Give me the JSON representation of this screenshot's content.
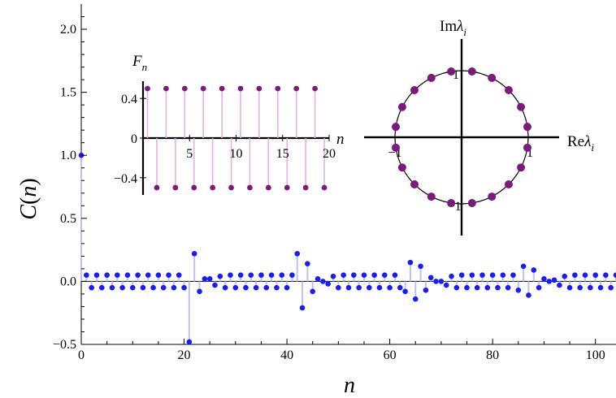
{
  "chart_data": [
    {
      "type": "scatter",
      "subtype": "stem",
      "xlabel": "n",
      "ylabel": "C(n)",
      "xlim": [
        0,
        104
      ],
      "ylim": [
        -0.5,
        2.2
      ],
      "x_ticks": [
        "0",
        "20",
        "40",
        "60",
        "80",
        "100"
      ],
      "y_ticks": [
        "−0.5",
        "0.0",
        "0.5",
        "1.0",
        "1.5",
        "2.0"
      ],
      "colors": {
        "points": "#1a1aff",
        "stems": "#b8c4f0"
      },
      "series": [
        {
          "x": [
            0,
            1,
            2,
            3,
            4,
            5,
            6,
            7,
            8,
            9,
            10,
            11,
            12,
            13,
            14,
            15,
            16,
            17,
            18,
            19,
            20,
            21,
            22,
            23,
            24,
            25,
            26,
            27,
            28,
            29,
            30,
            31,
            32,
            33,
            34,
            35,
            36,
            37,
            38,
            39,
            40,
            41,
            42,
            43,
            44,
            45,
            46,
            47,
            48,
            49,
            50,
            51,
            52,
            53,
            54,
            55,
            56,
            57,
            58,
            59,
            60,
            61,
            62,
            63,
            64,
            65,
            66,
            67,
            68,
            69,
            70,
            71,
            72,
            73,
            74,
            75,
            76,
            77,
            78,
            79,
            80,
            81,
            82,
            83,
            84,
            85,
            86,
            87,
            88,
            89,
            90,
            91,
            92,
            93,
            94,
            95,
            96,
            97,
            98,
            99,
            100,
            101,
            102,
            103,
            104
          ],
          "y": [
            1.0,
            0.05,
            -0.05,
            0.05,
            -0.05,
            0.05,
            -0.05,
            0.05,
            -0.05,
            0.05,
            -0.05,
            0.05,
            -0.05,
            0.05,
            -0.05,
            0.05,
            -0.05,
            0.05,
            -0.05,
            0.05,
            -0.05,
            -0.48,
            0.22,
            -0.08,
            0.02,
            0.02,
            -0.03,
            0.04,
            -0.05,
            0.05,
            -0.05,
            0.05,
            -0.05,
            0.05,
            -0.05,
            0.05,
            -0.05,
            0.05,
            -0.05,
            0.05,
            -0.05,
            0.05,
            0.22,
            -0.21,
            0.14,
            -0.08,
            0.02,
            0.0,
            -0.02,
            0.04,
            -0.05,
            0.05,
            -0.05,
            0.05,
            -0.05,
            0.05,
            -0.05,
            0.05,
            -0.05,
            0.05,
            -0.05,
            0.05,
            -0.05,
            -0.08,
            0.15,
            -0.14,
            0.12,
            -0.07,
            0.03,
            0.0,
            0.0,
            -0.03,
            0.04,
            -0.05,
            0.05,
            -0.05,
            0.05,
            -0.05,
            0.05,
            -0.05,
            0.05,
            -0.05,
            0.05,
            -0.05,
            0.05,
            -0.07,
            0.12,
            -0.11,
            0.09,
            -0.05,
            0.02,
            0.0,
            0.01,
            -0.03,
            0.04,
            -0.05,
            0.05,
            -0.05,
            0.05,
            -0.05,
            0.05,
            -0.05,
            0.05,
            -0.05,
            0.05
          ]
        }
      ]
    },
    {
      "type": "scatter",
      "subtype": "stem",
      "position": "inset-top-left",
      "ylabel": "F_n",
      "xlabel": "n",
      "x_ticks": [
        "5",
        "10",
        "15",
        "20"
      ],
      "y_ticks": [
        "0.4",
        "0",
        "−0.4"
      ],
      "xlim": [
        0,
        20
      ],
      "ylim": [
        -0.55,
        0.55
      ],
      "colors": {
        "points": "#7b1a7b",
        "stems": "#e0b4e0"
      },
      "series": [
        {
          "x": [
            1,
            2,
            3,
            4,
            5,
            6,
            7,
            8,
            9,
            10,
            11,
            12,
            13,
            14,
            15,
            16,
            17,
            18,
            19,
            20
          ],
          "y": [
            0.5,
            -0.5,
            0.5,
            -0.5,
            0.5,
            -0.5,
            0.5,
            -0.5,
            0.5,
            -0.5,
            0.5,
            -0.5,
            0.5,
            -0.5,
            0.5,
            -0.5,
            0.5,
            -0.5,
            0.5,
            -0.5
          ]
        }
      ]
    },
    {
      "type": "scatter",
      "subtype": "complex-plane",
      "position": "inset-top-right",
      "xlabel": "Reλ_i",
      "ylabel": "Imλ_i",
      "tick_labels": {
        "x_neg": "−1",
        "x_pos": "1",
        "y_pos": "1",
        "y_neg": "−1"
      },
      "unit_circle": true,
      "colors": {
        "points": "#7b1a7b",
        "circle": "#000000"
      },
      "points_count": 20,
      "points_angle_offset_deg": 9
    }
  ]
}
